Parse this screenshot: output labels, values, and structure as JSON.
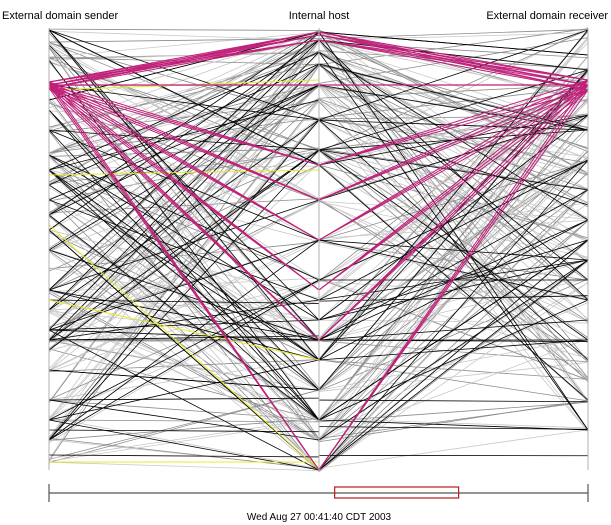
{
  "axes": {
    "left_label": "External domain sender",
    "middle_label": "Internal host",
    "right_label": "External domain receiver"
  },
  "timestamp": "Wed Aug 27 00:41:40 CDT 2003",
  "colors": {
    "background": "#ffffff",
    "axis": "#b0b0b0",
    "black_links": "#000000",
    "gray_links": "#8c8c8c",
    "light_gray_links": "#c8c8c8",
    "magenta_links": "#c0207a",
    "yellow_links": "#e8e830",
    "time_window": "#c01818"
  },
  "chart_data": {
    "type": "parallel-coordinates",
    "description_axes": [
      "External domain sender",
      "Internal host",
      "External domain receiver"
    ],
    "time_window_fraction": {
      "start": 0.53,
      "end": 0.76
    }
  }
}
